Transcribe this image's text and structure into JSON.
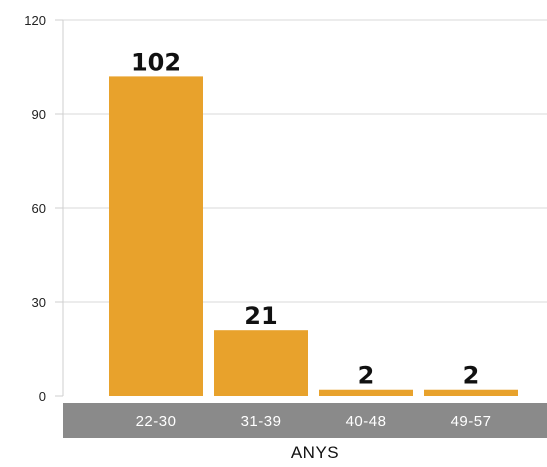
{
  "chart_data": {
    "type": "bar",
    "categories": [
      "22-30",
      "31-39",
      "40-48",
      "49-57"
    ],
    "values": [
      102,
      21,
      2,
      2
    ],
    "data_labels": [
      "102",
      "21",
      "2",
      "2"
    ],
    "title": "",
    "xlabel": "ANYS",
    "ylabel": "",
    "ylim": [
      0,
      120
    ],
    "yticks": [
      0,
      30,
      60,
      90,
      120
    ],
    "grid": true,
    "legend": "none",
    "colors": {
      "bar": "#E8A22C",
      "grid": "#d9d9d9",
      "axis": "#cfcfcf",
      "category_band": "#8a8a8a"
    }
  }
}
